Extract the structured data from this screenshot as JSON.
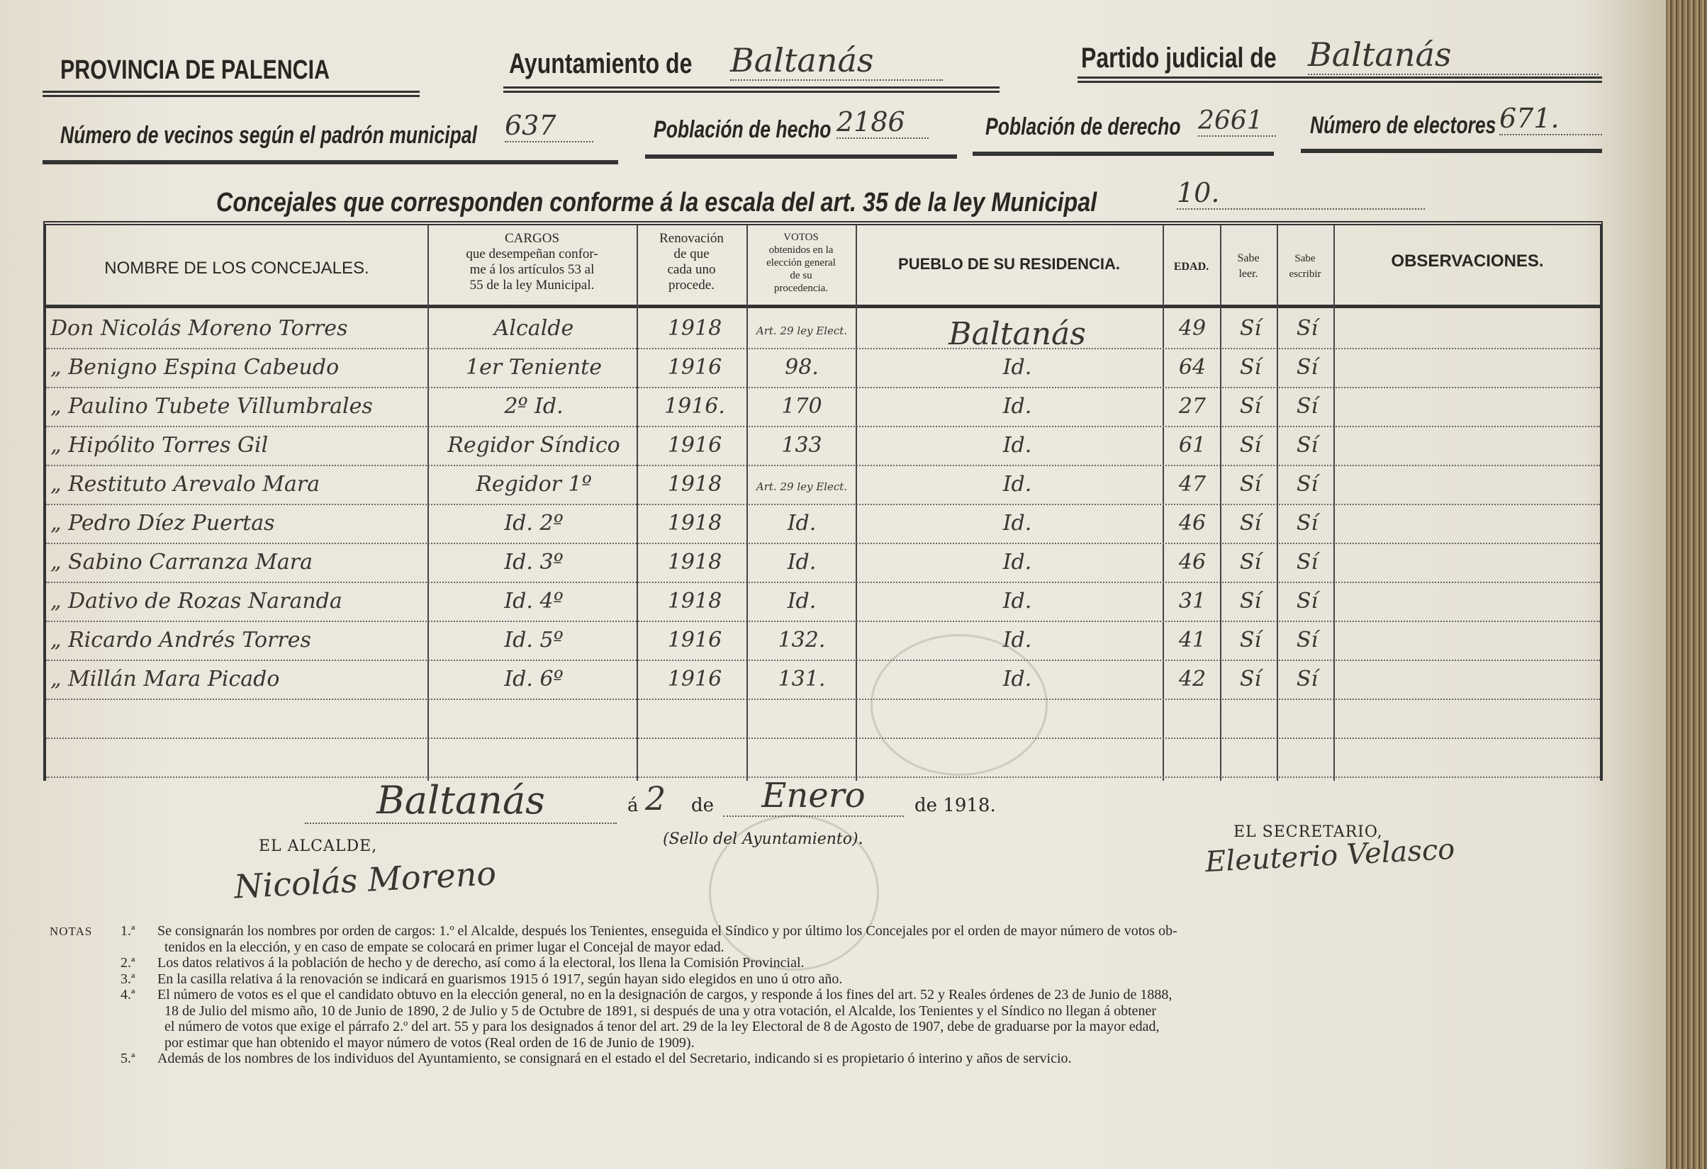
{
  "header": {
    "province": "PROVINCIA DE PALENCIA",
    "ayuntamiento_label": "Ayuntamiento de",
    "ayuntamiento_value": "Baltanás",
    "partido_label": "Partido judicial de",
    "partido_value": "Baltanás"
  },
  "stats": {
    "vecinos_label": "Número de vecinos según el padrón municipal",
    "vecinos_value": "637",
    "hecho_label": "Población de hecho",
    "hecho_value": "2186",
    "derecho_label": "Población de derecho",
    "derecho_value": "2661",
    "electores_label": "Número de electores",
    "electores_value": "671."
  },
  "concejales": {
    "label": "Concejales que corresponden conforme á la escala del art. 35 de la ley Municipal",
    "value": "10."
  },
  "table": {
    "headers": {
      "nombre": "NOMBRE DE LOS CONCEJALES.",
      "cargos": "CARGOS\nque desempeñan confor-\nme á los artículos 53 al\n55 de la ley Municipal.",
      "renovacion": "Renovación\nde que\ncada uno\nprocede.",
      "votos": "VOTOS\nobtenidos en la\nelección general\nde su\nprocedencia.",
      "pueblo": "PUEBLO DE SU RESIDENCIA.",
      "edad": "EDAD.",
      "leer": "Sabe\nleer.",
      "escribir": "Sabe\nescribir",
      "observaciones": "OBSERVACIONES."
    },
    "rows": [
      {
        "nombre": "Don Nicolás Moreno Torres",
        "cargo": "Alcalde",
        "renovacion": "1918",
        "votos": "Art. 29 ley Elect.",
        "pueblo": "Baltanás",
        "edad": "49",
        "leer": "Sí",
        "escribir": "Sí"
      },
      {
        "nombre": "„ Benigno Espina Cabeudo",
        "cargo": "1er Teniente",
        "renovacion": "1916",
        "votos": "98.",
        "pueblo": "Id.",
        "edad": "64",
        "leer": "Sí",
        "escribir": "Sí"
      },
      {
        "nombre": "„ Paulino Tubete Villumbrales",
        "cargo": "2º Id.",
        "renovacion": "1916.",
        "votos": "170",
        "pueblo": "Id.",
        "edad": "27",
        "leer": "Sí",
        "escribir": "Sí"
      },
      {
        "nombre": "„ Hipólito Torres Gil",
        "cargo": "Regidor Síndico",
        "renovacion": "1916",
        "votos": "133",
        "pueblo": "Id.",
        "edad": "61",
        "leer": "Sí",
        "escribir": "Sí"
      },
      {
        "nombre": "„ Restituto Arevalo Mara",
        "cargo": "Regidor 1º",
        "renovacion": "1918",
        "votos": "Art. 29 ley Elect.",
        "pueblo": "Id.",
        "edad": "47",
        "leer": "Sí",
        "escribir": "Sí"
      },
      {
        "nombre": "„ Pedro Díez Puertas",
        "cargo": "Id. 2º",
        "renovacion": "1918",
        "votos": "Id.",
        "pueblo": "Id.",
        "edad": "46",
        "leer": "Sí",
        "escribir": "Sí"
      },
      {
        "nombre": "„ Sabino Carranza Mara",
        "cargo": "Id. 3º",
        "renovacion": "1918",
        "votos": "Id.",
        "pueblo": "Id.",
        "edad": "46",
        "leer": "Sí",
        "escribir": "Sí"
      },
      {
        "nombre": "„ Dativo de Rozas Naranda",
        "cargo": "Id. 4º",
        "renovacion": "1918",
        "votos": "Id.",
        "pueblo": "Id.",
        "edad": "31",
        "leer": "Sí",
        "escribir": "Sí"
      },
      {
        "nombre": "„ Ricardo Andrés Torres",
        "cargo": "Id. 5º",
        "renovacion": "1916",
        "votos": "132.",
        "pueblo": "Id.",
        "edad": "41",
        "leer": "Sí",
        "escribir": "Sí"
      },
      {
        "nombre": "„ Millán Mara Picado",
        "cargo": "Id. 6º",
        "renovacion": "1916",
        "votos": "131.",
        "pueblo": "Id.",
        "edad": "42",
        "leer": "Sí",
        "escribir": "Sí"
      }
    ]
  },
  "footer": {
    "place": "Baltanás",
    "a": "á",
    "day": "2",
    "de": "de",
    "month": "Enero",
    "year_text": "de 1918.",
    "alcalde_label": "EL ALCALDE,",
    "sello_label": "(Sello del Ayuntamiento).",
    "secretario_label": "EL SECRETARIO,",
    "alcalde_signature": "Nicolás Moreno",
    "secretario_signature": "Eleuterio Velasco"
  },
  "notes": {
    "label": "NOTAS",
    "items": [
      {
        "n": "1.ª",
        "lines": [
          "Se consignarán los nombres por orden de cargos: 1.º el Alcalde, después los Tenientes, enseguida el Síndico y por último los Concejales por el orden de mayor número de votos ob-",
          "tenidos en la elección, y en caso de empate se colocará en primer lugar el Concejal de mayor edad."
        ]
      },
      {
        "n": "2.ª",
        "lines": [
          "Los datos relativos á la población de hecho y de derecho, así como á la electoral, los llena la Comisión Provincial."
        ]
      },
      {
        "n": "3.ª",
        "lines": [
          "En la casilla relativa á la renovación se indicará en guarismos 1915 ó 1917, según hayan sido elegidos en uno ú otro año."
        ]
      },
      {
        "n": "4.ª",
        "lines": [
          "El número de votos es el que el candidato obtuvo en la elección general, no en la designación de cargos, y responde á los fines del art. 52 y Reales órdenes de 23 de Junio de 1888,",
          "18 de Julio del mismo año, 10 de Junio de 1890, 2 de Julio y 5 de Octubre de 1891, si después de una y otra votación, el Alcalde, los Tenientes y el Síndico no llegan á obtener",
          "el número de votos que exige el párrafo 2.º del art. 55 y para los designados á tenor del art. 29 de la ley Electoral de 8 de Agosto de 1907, debe de graduarse por la mayor edad,",
          "por estimar que han obtenido el mayor número de votos (Real orden de 16 de Junio de 1909)."
        ]
      },
      {
        "n": "5.ª",
        "lines": [
          "Además de los nombres de los individuos del Ayuntamiento, se consignará en el estado el del Secretario, indicando si es propietario ó interino y años de servicio."
        ]
      }
    ]
  }
}
